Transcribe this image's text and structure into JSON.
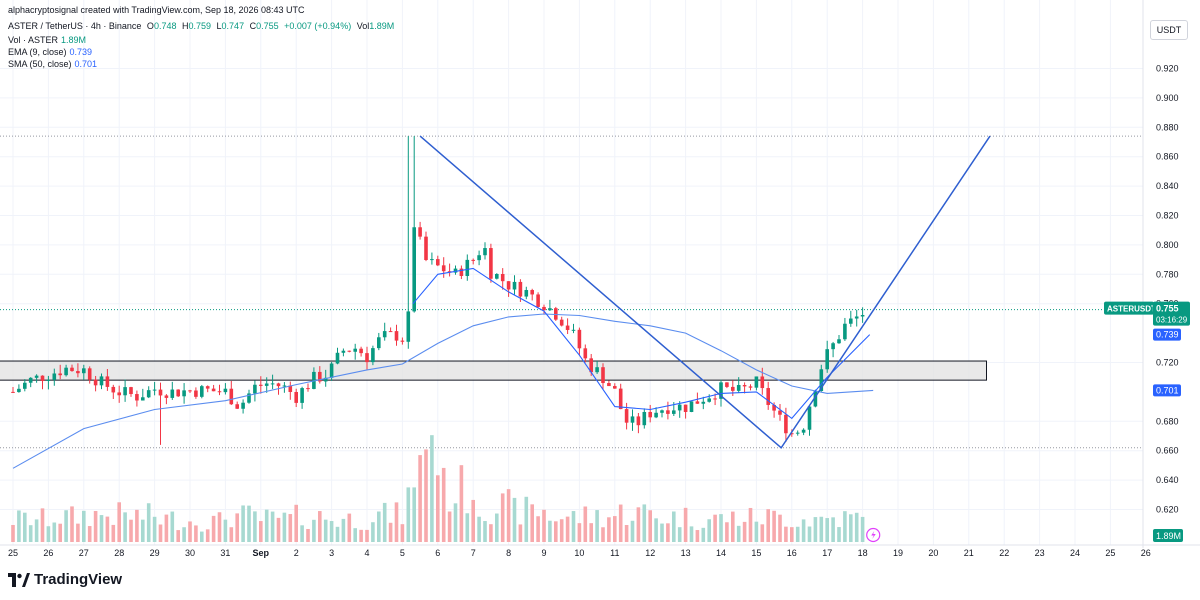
{
  "meta": {
    "attribution": "alphacryptosignal created with TradingView.com, Sep 18, 2026 08:43 UTC"
  },
  "legend": {
    "symbol": "ASTER / TetherUS · 4h · Binance",
    "open_label": "O",
    "open": "0.748",
    "high_label": "H",
    "high": "0.759",
    "low_label": "L",
    "low": "0.747",
    "close_label": "C",
    "close": "0.755",
    "change": "+0.007 (+0.94%)",
    "vol_label": "Vol",
    "vol": "1.89M",
    "volume_name": "Vol · ASTER",
    "volume_value": "1.89M",
    "ema_name": "EMA (9, close)",
    "ema_value": "0.739",
    "sma_name": "SMA (50, close)",
    "sma_value": "0.701"
  },
  "price_axis": {
    "unit_button": "USDT",
    "ticks": [
      "0.920",
      "0.900",
      "0.880",
      "0.860",
      "0.840",
      "0.820",
      "0.800",
      "0.780",
      "0.760",
      "0.720",
      "0.680",
      "0.660",
      "0.640",
      "0.620"
    ],
    "last_symbol": "ASTERUSDT",
    "last_price": "0.755",
    "countdown": "03:16:29",
    "ema_tag": "0.739",
    "sma_tag": "0.701",
    "volume_tag": "1.89M"
  },
  "time_axis": {
    "labels": [
      "25",
      "26",
      "27",
      "28",
      "29",
      "30",
      "31",
      "Sep",
      "2",
      "3",
      "4",
      "5",
      "6",
      "7",
      "8",
      "9",
      "10",
      "11",
      "12",
      "13",
      "14",
      "15",
      "16",
      "17",
      "18",
      "19",
      "20",
      "21",
      "22",
      "23",
      "24",
      "25",
      "26"
    ]
  },
  "footer": {
    "brand": "TradingView"
  },
  "colors": {
    "up": "#089981",
    "down": "#f23645",
    "vol_up": "#a7d9d1",
    "vol_down": "#f7a9ac",
    "ema": "#2962ff",
    "sma": "#5b8def",
    "drawing": "#2f5fd0",
    "zone_fill": "#e3e3e3"
  },
  "chart_data": {
    "type": "candlestick",
    "symbol": "ASTERUSDT",
    "timeframe": "4h",
    "x": [
      "Aug 25",
      "Aug 26",
      "Aug 27",
      "Aug 28",
      "Aug 29",
      "Aug 30",
      "Aug 31",
      "Sep 1",
      "Sep 2",
      "Sep 3",
      "Sep 4",
      "Sep 5",
      "Sep 6",
      "Sep 7",
      "Sep 8",
      "Sep 9",
      "Sep 10",
      "Sep 11",
      "Sep 12",
      "Sep 13",
      "Sep 14",
      "Sep 15",
      "Sep 16",
      "Sep 17",
      "Sep 18"
    ],
    "close_path": [
      [
        0,
        0.7
      ],
      [
        0.5,
        0.708
      ],
      [
        1,
        0.712
      ],
      [
        1.5,
        0.716
      ],
      [
        2,
        0.715
      ],
      [
        2.5,
        0.706
      ],
      [
        3,
        0.7
      ],
      [
        3.5,
        0.697
      ],
      [
        4,
        0.702
      ],
      [
        4.5,
        0.7
      ],
      [
        5,
        0.701
      ],
      [
        5.5,
        0.701
      ],
      [
        6,
        0.7
      ],
      [
        6.4,
        0.69
      ],
      [
        6.8,
        0.703
      ],
      [
        7.2,
        0.706
      ],
      [
        7.6,
        0.704
      ],
      [
        8,
        0.697
      ],
      [
        8.5,
        0.709
      ],
      [
        8.9,
        0.712
      ],
      [
        9.3,
        0.728
      ],
      [
        9.7,
        0.73
      ],
      [
        10,
        0.724
      ],
      [
        10.4,
        0.737
      ],
      [
        10.8,
        0.739
      ],
      [
        11.1,
        0.735
      ],
      [
        11.25,
        0.77
      ],
      [
        11.4,
        0.812
      ],
      [
        11.6,
        0.79
      ],
      [
        12,
        0.785
      ],
      [
        12.5,
        0.78
      ],
      [
        13,
        0.79
      ],
      [
        13.3,
        0.8
      ],
      [
        13.5,
        0.782
      ],
      [
        14,
        0.773
      ],
      [
        14.5,
        0.768
      ],
      [
        15,
        0.76
      ],
      [
        15.4,
        0.752
      ],
      [
        15.8,
        0.74
      ],
      [
        16.2,
        0.72
      ],
      [
        16.6,
        0.712
      ],
      [
        17,
        0.7
      ],
      [
        17.3,
        0.68
      ],
      [
        17.6,
        0.678
      ],
      [
        18,
        0.686
      ],
      [
        18.5,
        0.69
      ],
      [
        19,
        0.69
      ],
      [
        19.5,
        0.696
      ],
      [
        20,
        0.702
      ],
      [
        20.5,
        0.7
      ],
      [
        21,
        0.706
      ],
      [
        21.4,
        0.69
      ],
      [
        21.7,
        0.68
      ],
      [
        22,
        0.672
      ],
      [
        22.3,
        0.675
      ],
      [
        22.6,
        0.7
      ],
      [
        22.9,
        0.722
      ],
      [
        23.2,
        0.733
      ],
      [
        23.5,
        0.745
      ],
      [
        23.8,
        0.75
      ],
      [
        24.1,
        0.755
      ]
    ],
    "ema_9": [
      [
        11.3,
        0.76
      ],
      [
        12,
        0.78
      ],
      [
        13,
        0.784
      ],
      [
        14,
        0.768
      ],
      [
        15,
        0.755
      ],
      [
        16,
        0.725
      ],
      [
        17,
        0.69
      ],
      [
        18,
        0.688
      ],
      [
        19,
        0.693
      ],
      [
        20,
        0.699
      ],
      [
        21,
        0.7
      ],
      [
        22,
        0.682
      ],
      [
        23,
        0.71
      ],
      [
        24.2,
        0.739
      ]
    ],
    "sma_50": [
      [
        0,
        0.648
      ],
      [
        2,
        0.675
      ],
      [
        4,
        0.688
      ],
      [
        6,
        0.694
      ],
      [
        8,
        0.705
      ],
      [
        10,
        0.715
      ],
      [
        11,
        0.719
      ],
      [
        12,
        0.733
      ],
      [
        13,
        0.745
      ],
      [
        14,
        0.751
      ],
      [
        15,
        0.753
      ],
      [
        16,
        0.752
      ],
      [
        17,
        0.748
      ],
      [
        18,
        0.745
      ],
      [
        19,
        0.74
      ],
      [
        20,
        0.728
      ],
      [
        21,
        0.715
      ],
      [
        22,
        0.704
      ],
      [
        23,
        0.699
      ],
      [
        24.3,
        0.701
      ]
    ],
    "annotations": {
      "support_zone": {
        "x_range": [
          -1,
          27.5
        ],
        "y_range": [
          0.708,
          0.721
        ]
      },
      "pattern_line": [
        [
          11.5,
          0.874
        ],
        [
          21.7,
          0.662
        ],
        [
          27.6,
          0.874
        ]
      ],
      "dotted_levels": [
        0.874,
        0.662,
        0.756
      ]
    },
    "volume": [
      0.22,
      0.24,
      0.26,
      0.25,
      0.22,
      0.2,
      0.25,
      0.22,
      0.24,
      0.22,
      0.26,
      1.0,
      0.5,
      0.34,
      0.3,
      0.24,
      0.25,
      0.28,
      0.24,
      0.22,
      0.23,
      0.24,
      0.22,
      0.23,
      0.2
    ],
    "ylim": [
      0.605,
      0.935
    ],
    "grid": true,
    "legend_position": "top-left"
  }
}
